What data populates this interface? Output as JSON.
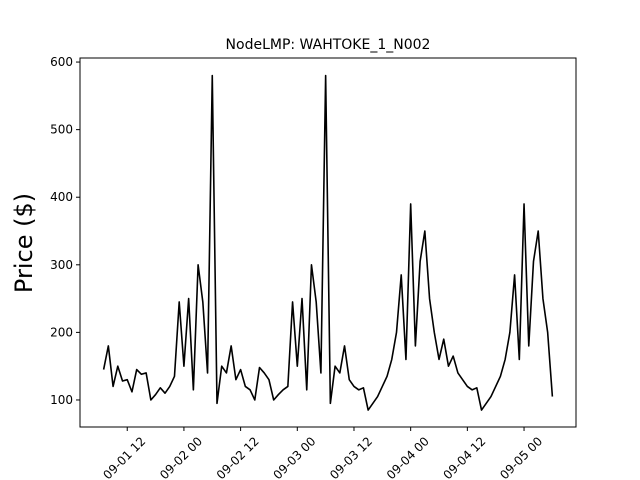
{
  "chart_data": {
    "type": "line",
    "title": "NodeLMP: WAHTOKE_1_N002",
    "y_label": "Price ($)",
    "x": [
      "09-01 07",
      "09-01 08",
      "09-01 09",
      "09-01 10",
      "09-01 11",
      "09-01 12",
      "09-01 13",
      "09-01 14",
      "09-01 15",
      "09-01 16",
      "09-01 17",
      "09-01 18",
      "09-01 19",
      "09-01 20",
      "09-01 21",
      "09-01 22",
      "09-01 23",
      "09-02 00",
      "09-02 01",
      "09-02 02",
      "09-02 03",
      "09-02 04",
      "09-02 05",
      "09-02 06",
      "09-02 07",
      "09-02 08",
      "09-02 09",
      "09-02 10",
      "09-02 11",
      "09-02 12",
      "09-02 13",
      "09-02 14",
      "09-02 15",
      "09-02 16",
      "09-02 17",
      "09-02 18",
      "09-02 19",
      "09-02 20",
      "09-02 21",
      "09-02 22",
      "09-02 23",
      "09-03 00",
      "09-03 01",
      "09-03 02",
      "09-03 03",
      "09-03 04",
      "09-03 05",
      "09-03 06",
      "09-03 07",
      "09-03 08",
      "09-03 09",
      "09-03 10",
      "09-03 11",
      "09-03 12",
      "09-03 13",
      "09-03 14",
      "09-03 15",
      "09-03 16",
      "09-03 17",
      "09-03 18",
      "09-03 19",
      "09-03 20",
      "09-03 21",
      "09-03 22",
      "09-03 23",
      "09-04 00",
      "09-04 01",
      "09-04 02",
      "09-04 03",
      "09-04 04",
      "09-04 05",
      "09-04 06",
      "09-04 07",
      "09-04 08",
      "09-04 09",
      "09-04 10",
      "09-04 11",
      "09-04 12",
      "09-04 13",
      "09-04 14",
      "09-04 15",
      "09-04 16",
      "09-04 17",
      "09-04 18",
      "09-04 19",
      "09-04 20",
      "09-04 21",
      "09-04 22",
      "09-04 23",
      "09-05 00",
      "09-05 01",
      "09-05 02",
      "09-05 03",
      "09-05 04",
      "09-05 05",
      "09-05 06"
    ],
    "series": [
      {
        "name": "NodeLMP",
        "color": "#000000",
        "values": [
          145,
          180,
          120,
          150,
          128,
          130,
          112,
          145,
          138,
          140,
          100,
          108,
          118,
          110,
          120,
          135,
          245,
          150,
          250,
          115,
          300,
          245,
          140,
          580,
          95,
          150,
          140,
          180,
          130,
          145,
          120,
          115,
          100,
          148,
          140,
          130,
          100,
          108,
          115,
          120,
          245,
          150,
          250,
          115,
          300,
          245,
          140,
          580,
          95,
          150,
          140,
          180,
          130,
          120,
          115,
          118,
          85,
          95,
          105,
          120,
          135,
          160,
          200,
          285,
          160,
          390,
          180,
          305,
          350,
          250,
          200,
          160,
          190,
          150,
          165,
          140,
          130,
          120,
          115,
          118,
          85,
          95,
          105,
          120,
          135,
          160,
          200,
          285,
          160,
          390,
          180,
          305,
          350,
          250,
          200,
          105
        ]
      }
    ],
    "xlim": [
      "09-01 02",
      "09-05 11"
    ],
    "xticks": [
      "09-01 12",
      "09-02 00",
      "09-02 12",
      "09-03 00",
      "09-03 12",
      "09-04 00",
      "09-04 12",
      "09-05 00"
    ],
    "ylim": [
      60,
      606
    ],
    "yticks": [
      100,
      200,
      300,
      400,
      500,
      600
    ]
  }
}
